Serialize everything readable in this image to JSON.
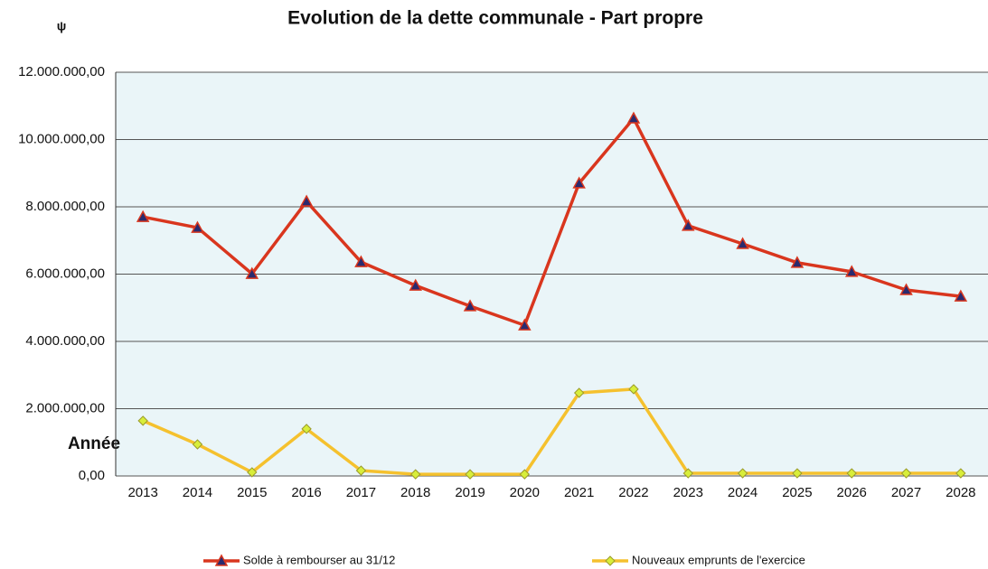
{
  "chart_data": {
    "type": "line",
    "title": "Evolution de la dette communale - Part propre",
    "corner_mark": "ψ",
    "x_label": "Année",
    "categories": [
      "2013",
      "2014",
      "2015",
      "2016",
      "2017",
      "2018",
      "2019",
      "2020",
      "2021",
      "2022",
      "2023",
      "2024",
      "2025",
      "2026",
      "2027",
      "2028"
    ],
    "series": [
      {
        "name": "Solde à rembourser au 31/12",
        "color": "#d9361e",
        "marker": "triangle",
        "marker_color": "#2a2a6e",
        "values": [
          7700000,
          7380000,
          6010000,
          8160000,
          6360000,
          5660000,
          5050000,
          4480000,
          8700000,
          10630000,
          7440000,
          6900000,
          6340000,
          6070000,
          5530000,
          5340000
        ]
      },
      {
        "name": "Nouveaux emprunts de l'exercice",
        "color": "#f5c12e",
        "marker": "diamond",
        "marker_color": "#d8ee3a",
        "values": [
          1640000,
          940000,
          110000,
          1400000,
          160000,
          50000,
          50000,
          50000,
          2470000,
          2580000,
          80000,
          80000,
          80000,
          80000,
          80000,
          80000
        ]
      }
    ],
    "ylim": [
      0,
      12000000
    ],
    "yticks": [
      {
        "value": 0,
        "label": "0,00"
      },
      {
        "value": 2000000,
        "label": "2.000.000,00"
      },
      {
        "value": 4000000,
        "label": "4.000.000,00"
      },
      {
        "value": 6000000,
        "label": "6.000.000,00"
      },
      {
        "value": 8000000,
        "label": "8.000.000,00"
      },
      {
        "value": 10000000,
        "label": "10.000.000,00"
      },
      {
        "value": 12000000,
        "label": "12.000.000,00"
      }
    ],
    "grid": true,
    "legend": "bottom"
  }
}
